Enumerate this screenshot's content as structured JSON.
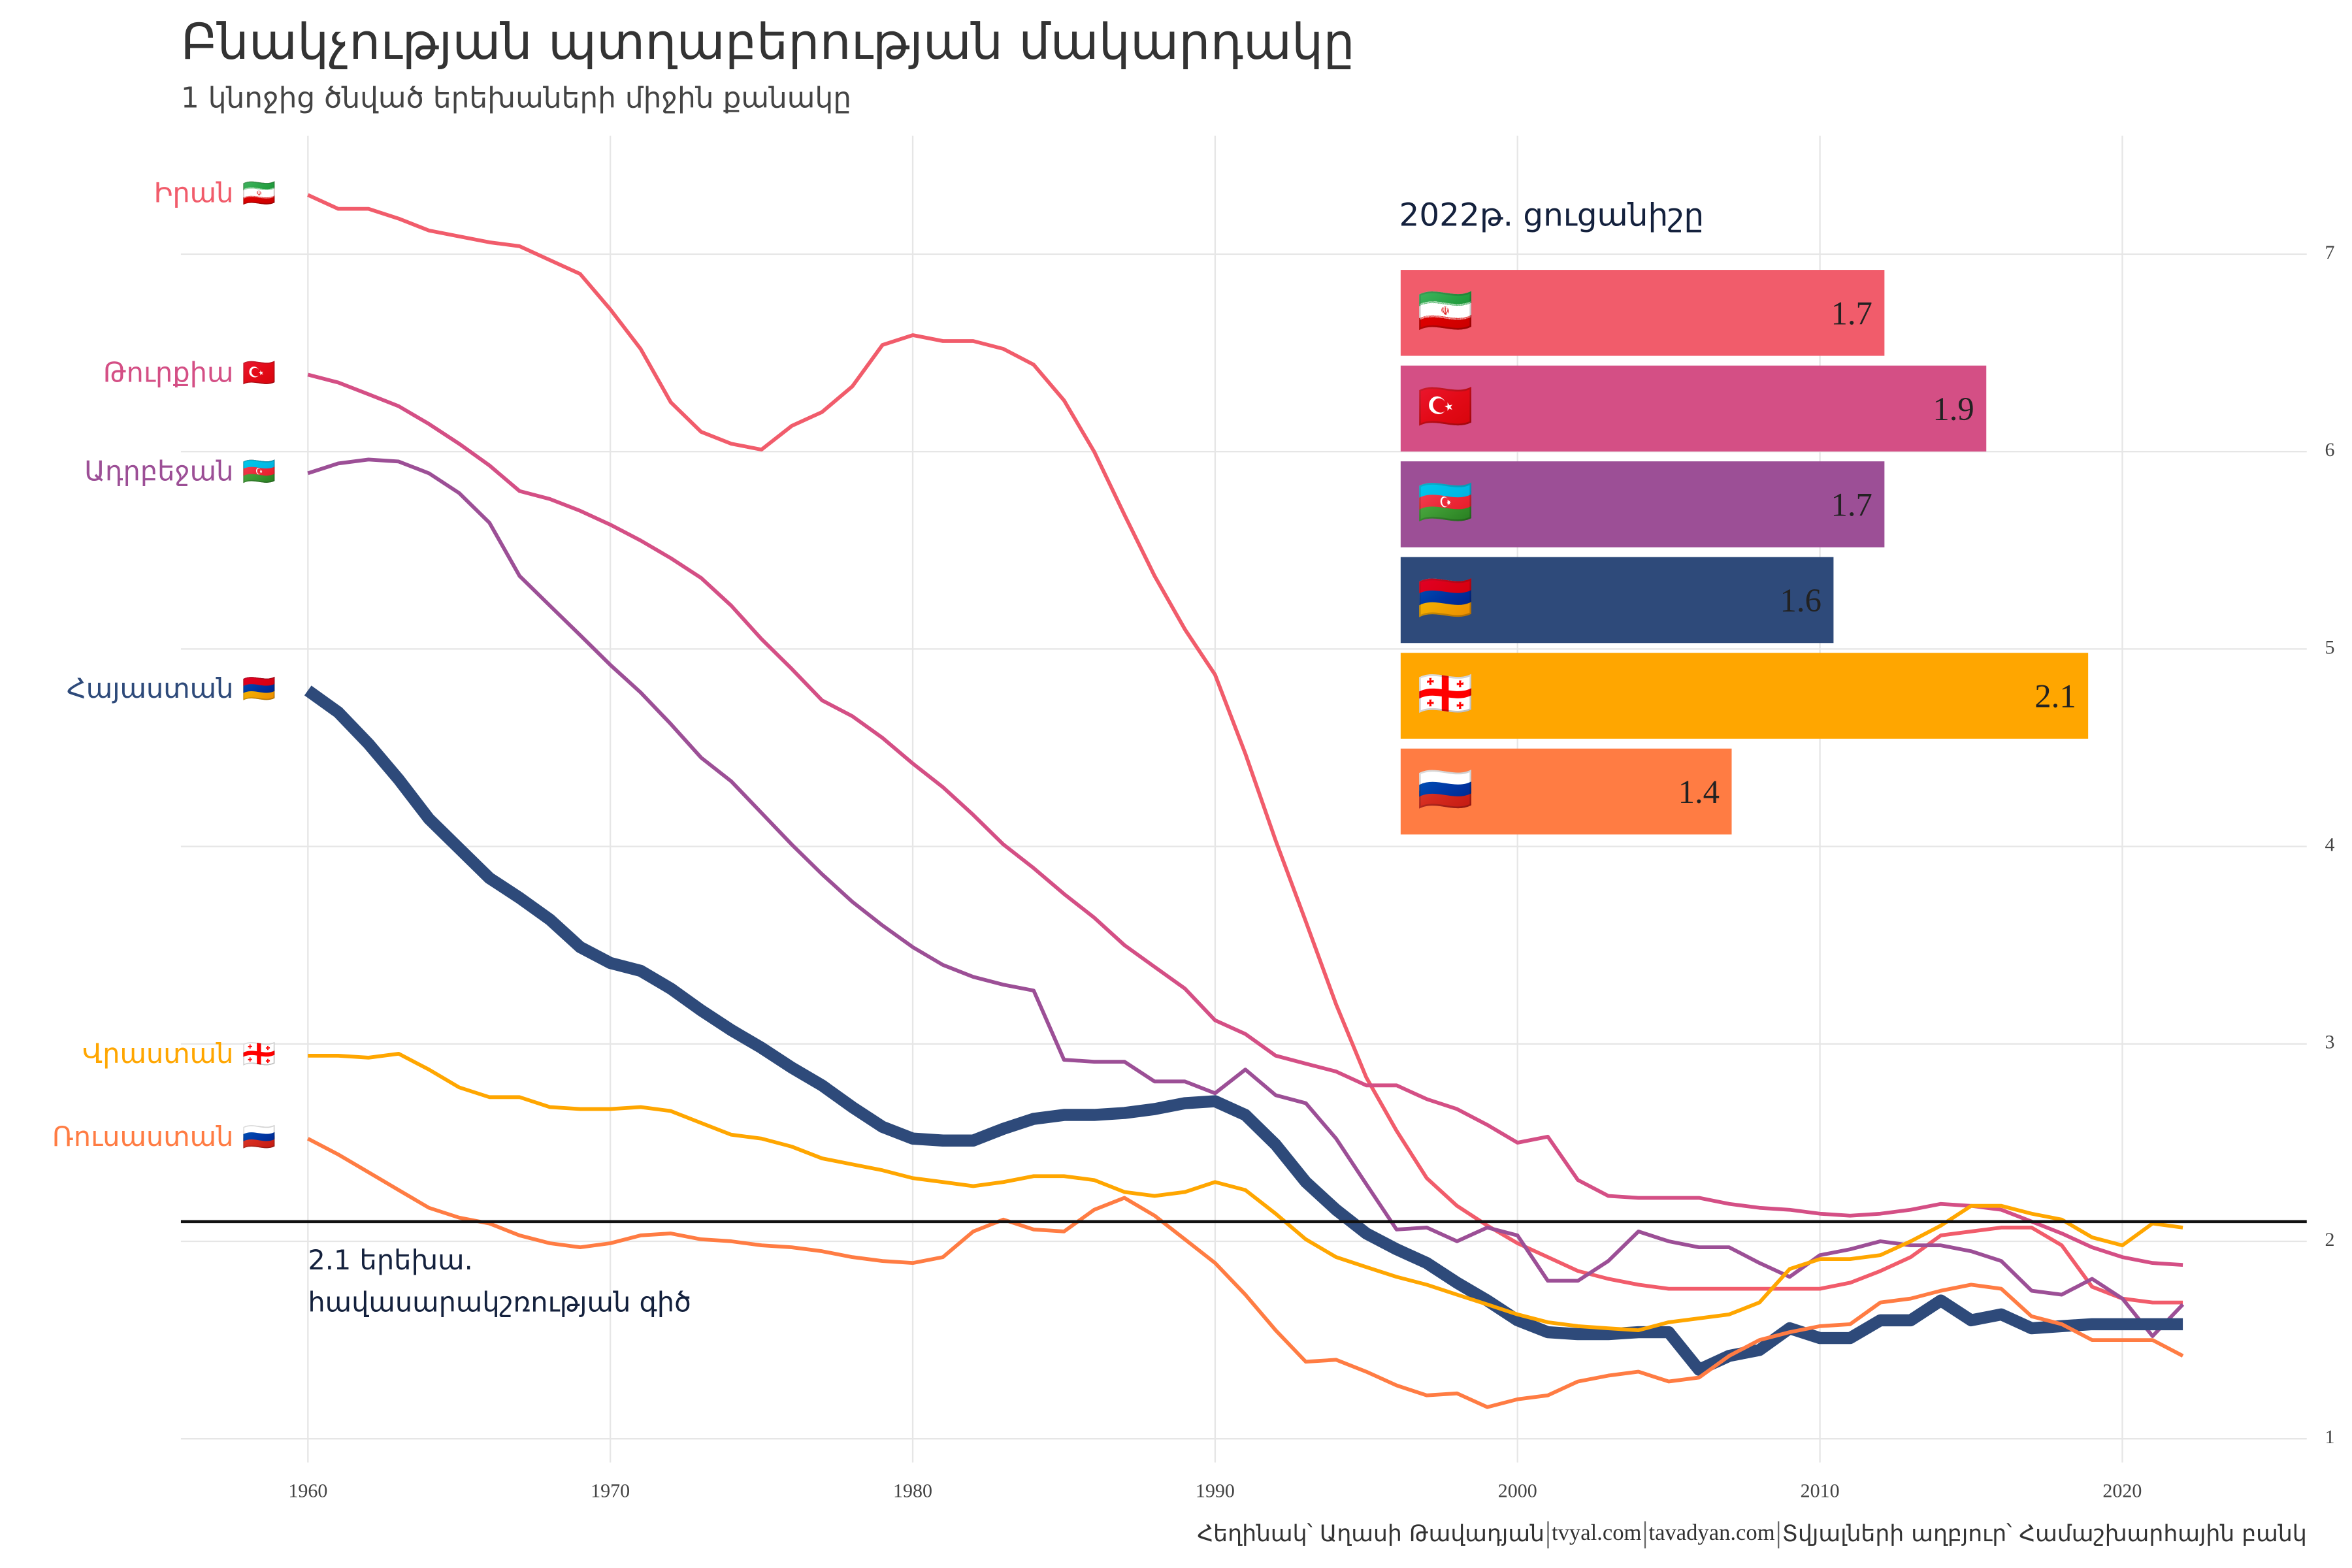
{
  "chart_data": {
    "type": "line",
    "title": "Բնակչության պտղաբերության մակարդակը",
    "subtitle": "1 կնոջից ծնված երեխաների միջին քանակը",
    "x": [
      1960,
      1961,
      1962,
      1963,
      1964,
      1965,
      1966,
      1967,
      1968,
      1969,
      1970,
      1971,
      1972,
      1973,
      1974,
      1975,
      1976,
      1977,
      1978,
      1979,
      1980,
      1981,
      1982,
      1983,
      1984,
      1985,
      1986,
      1987,
      1988,
      1989,
      1990,
      1991,
      1992,
      1993,
      1994,
      1995,
      1996,
      1997,
      1998,
      1999,
      2000,
      2001,
      2002,
      2003,
      2004,
      2005,
      2006,
      2007,
      2008,
      2009,
      2010,
      2011,
      2012,
      2013,
      2014,
      2015,
      2016,
      2017,
      2018,
      2019,
      2020,
      2021,
      2022
    ],
    "series": [
      {
        "name": "Իրան",
        "flag": "🇮🇷",
        "color": "#f15c6b",
        "width": 2.5,
        "values": [
          7.3,
          7.23,
          7.23,
          7.18,
          7.12,
          7.09,
          7.06,
          7.04,
          6.97,
          6.9,
          6.72,
          6.52,
          6.25,
          6.1,
          6.04,
          6.01,
          6.13,
          6.2,
          6.33,
          6.54,
          6.59,
          6.56,
          6.56,
          6.52,
          6.44,
          6.26,
          6.0,
          5.68,
          5.37,
          5.1,
          4.87,
          4.47,
          4.03,
          3.62,
          3.2,
          2.83,
          2.56,
          2.32,
          2.18,
          2.08,
          1.99,
          1.92,
          1.85,
          1.81,
          1.78,
          1.76,
          1.76,
          1.76,
          1.76,
          1.76,
          1.76,
          1.79,
          1.85,
          1.92,
          2.03,
          2.05,
          2.07,
          2.07,
          1.98,
          1.77,
          1.71,
          1.69,
          1.69
        ]
      },
      {
        "name": "Թուրքիա",
        "flag": "🇹🇷",
        "color": "#d44f85",
        "width": 2.5,
        "values": [
          6.39,
          6.35,
          6.29,
          6.23,
          6.14,
          6.04,
          5.93,
          5.8,
          5.76,
          5.7,
          5.63,
          5.55,
          5.46,
          5.36,
          5.22,
          5.05,
          4.9,
          4.74,
          4.66,
          4.55,
          4.42,
          4.3,
          4.16,
          4.01,
          3.89,
          3.76,
          3.64,
          3.5,
          3.39,
          3.28,
          3.12,
          3.05,
          2.94,
          2.9,
          2.86,
          2.79,
          2.79,
          2.72,
          2.67,
          2.59,
          2.5,
          2.53,
          2.31,
          2.23,
          2.22,
          2.22,
          2.22,
          2.19,
          2.17,
          2.16,
          2.14,
          2.13,
          2.14,
          2.16,
          2.19,
          2.18,
          2.16,
          2.1,
          2.04,
          1.97,
          1.92,
          1.89,
          1.88
        ]
      },
      {
        "name": "Ադրբեջան",
        "flag": "🇦🇿",
        "color": "#9c4f96",
        "width": 2.5,
        "values": [
          5.89,
          5.94,
          5.96,
          5.95,
          5.89,
          5.79,
          5.64,
          5.37,
          5.22,
          5.07,
          4.92,
          4.78,
          4.62,
          4.45,
          4.33,
          4.17,
          4.01,
          3.86,
          3.72,
          3.6,
          3.49,
          3.4,
          3.34,
          3.3,
          3.27,
          2.92,
          2.91,
          2.91,
          2.81,
          2.81,
          2.75,
          2.87,
          2.74,
          2.7,
          2.52,
          2.29,
          2.06,
          2.07,
          2.0,
          2.07,
          2.03,
          1.8,
          1.8,
          1.9,
          2.05,
          2.0,
          1.97,
          1.97,
          1.89,
          1.82,
          1.93,
          1.96,
          2.0,
          1.98,
          1.98,
          1.95,
          1.9,
          1.75,
          1.73,
          1.81,
          1.71,
          1.52,
          1.68
        ]
      },
      {
        "name": "Հայաստան",
        "flag": "🇦🇲",
        "color": "#2e4a7a",
        "width": 8,
        "values": [
          4.79,
          4.68,
          4.52,
          4.34,
          4.14,
          3.99,
          3.84,
          3.74,
          3.63,
          3.49,
          3.41,
          3.37,
          3.28,
          3.17,
          3.07,
          2.98,
          2.88,
          2.79,
          2.68,
          2.58,
          2.52,
          2.51,
          2.51,
          2.57,
          2.62,
          2.64,
          2.64,
          2.65,
          2.67,
          2.7,
          2.71,
          2.64,
          2.49,
          2.3,
          2.16,
          2.04,
          1.96,
          1.89,
          1.79,
          1.7,
          1.6,
          1.54,
          1.53,
          1.53,
          1.54,
          1.54,
          1.35,
          1.42,
          1.45,
          1.56,
          1.51,
          1.51,
          1.6,
          1.6,
          1.7,
          1.6,
          1.63,
          1.56,
          1.57,
          1.58,
          1.58,
          1.58,
          1.58
        ]
      },
      {
        "name": "Վրաստան",
        "flag": "🇬🇪",
        "color": "#ffa600",
        "width": 2.5,
        "values": [
          2.94,
          2.94,
          2.93,
          2.95,
          2.87,
          2.78,
          2.73,
          2.73,
          2.68,
          2.67,
          2.67,
          2.68,
          2.66,
          2.6,
          2.54,
          2.52,
          2.48,
          2.42,
          2.39,
          2.36,
          2.32,
          2.3,
          2.28,
          2.3,
          2.33,
          2.33,
          2.31,
          2.25,
          2.23,
          2.25,
          2.3,
          2.26,
          2.14,
          2.01,
          1.92,
          1.87,
          1.82,
          1.78,
          1.73,
          1.68,
          1.63,
          1.59,
          1.57,
          1.56,
          1.55,
          1.59,
          1.61,
          1.63,
          1.69,
          1.86,
          1.91,
          1.91,
          1.93,
          2.0,
          2.08,
          2.18,
          2.18,
          2.14,
          2.11,
          2.02,
          1.98,
          2.09,
          2.07
        ]
      },
      {
        "name": "Ռուսաստան",
        "flag": "🇷🇺",
        "color": "#ff7c43",
        "width": 2.5,
        "values": [
          2.52,
          2.44,
          2.35,
          2.26,
          2.17,
          2.12,
          2.09,
          2.03,
          1.99,
          1.97,
          1.99,
          2.03,
          2.04,
          2.01,
          2.0,
          1.98,
          1.97,
          1.95,
          1.92,
          1.9,
          1.89,
          1.92,
          2.05,
          2.11,
          2.06,
          2.05,
          2.16,
          2.22,
          2.13,
          2.01,
          1.89,
          1.73,
          1.55,
          1.39,
          1.4,
          1.34,
          1.27,
          1.22,
          1.23,
          1.16,
          1.2,
          1.22,
          1.29,
          1.32,
          1.34,
          1.29,
          1.31,
          1.42,
          1.5,
          1.54,
          1.57,
          1.58,
          1.69,
          1.71,
          1.75,
          1.78,
          1.76,
          1.62,
          1.58,
          1.5,
          1.5,
          1.5,
          1.42
        ]
      }
    ],
    "xlim": [
      1955.8,
      2026.1
    ],
    "xticks": [
      1960,
      1970,
      1980,
      1990,
      2000,
      2010,
      2020
    ],
    "ylim": [
      0.88,
      7.6
    ],
    "yticks": [
      1,
      2,
      3,
      4,
      5,
      6,
      7
    ],
    "grid": true,
    "hline": {
      "value": 2.1,
      "color": "#111111",
      "label_lines": [
        "2.1 երեխա.",
        "հավասարակշռության գիծ"
      ]
    },
    "inset": {
      "title": "2022թ. ցուցանիշը",
      "values": [
        1.7,
        1.9,
        1.7,
        1.6,
        2.1,
        1.4
      ],
      "xlim": [
        0.75,
        2.1
      ]
    },
    "caption": [
      "Հեղինակ՝ Աղասի Թավադյան",
      "tvyal.com",
      "tavadyan.com",
      "Տվյալների աղբյուր՝ Համաշխարհային բանկ"
    ]
  }
}
